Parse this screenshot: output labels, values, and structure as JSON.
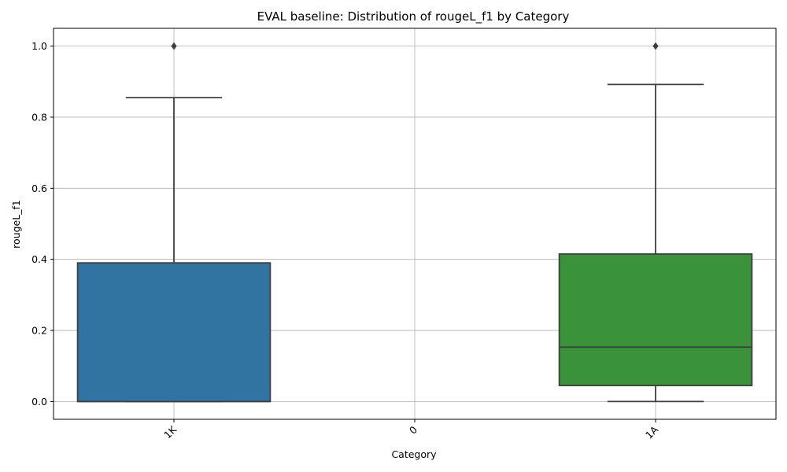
{
  "chart_data": {
    "type": "box",
    "title": "EVAL baseline: Distribution of rougeL_f1 by Category",
    "xlabel": "Category",
    "ylabel": "rougeL_f1",
    "ylim": [
      -0.05,
      1.05
    ],
    "yticks": [
      "0.0",
      "0.2",
      "0.4",
      "0.6",
      "0.8",
      "1.0"
    ],
    "ytick_values": [
      0.0,
      0.2,
      0.4,
      0.6,
      0.8,
      1.0
    ],
    "grid": true,
    "categories": [
      "1K",
      "0",
      "1A"
    ],
    "boxes": [
      {
        "category": "1K",
        "whisker_low": 0.0,
        "q1": 0.0,
        "median": 0.0,
        "q3": 0.39,
        "whisker_high": 0.855,
        "outliers": [
          1.0
        ],
        "color": "#3274a1"
      },
      {
        "category": "0",
        "whisker_low": null,
        "q1": null,
        "median": null,
        "q3": null,
        "whisker_high": null,
        "outliers": [],
        "color": "#e1812c"
      },
      {
        "category": "1A",
        "whisker_low": 0.0,
        "q1": 0.045,
        "median": 0.153,
        "q3": 0.415,
        "whisker_high": 0.892,
        "outliers": [
          1.0
        ],
        "color": "#3a923a"
      }
    ],
    "line_color": "#3f3f3f",
    "grid_color": "#b0b0b0"
  }
}
